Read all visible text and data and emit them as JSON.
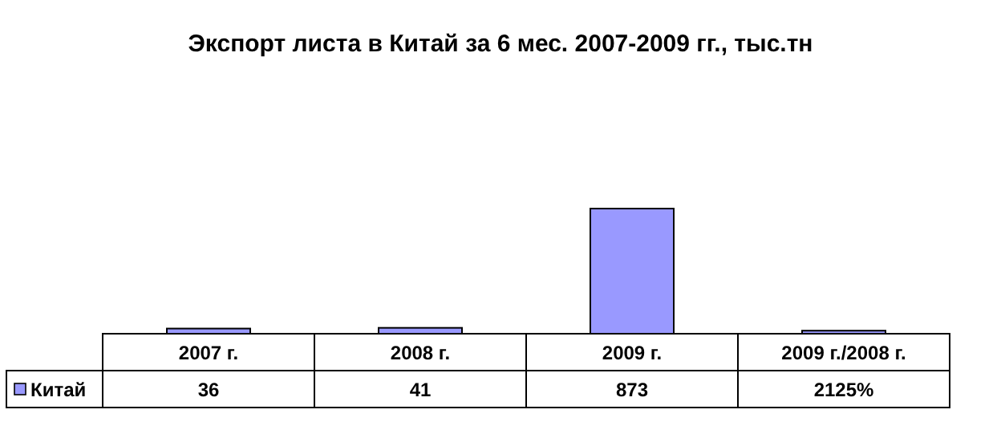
{
  "chart_data": {
    "type": "bar",
    "title": "Экспорт листа в Китай за 6 мес. 2007-2009 гг., тыс.тн",
    "categories": [
      "2007 г.",
      "2008 г.",
      "2009 г.",
      "2009 г./2008 г."
    ],
    "series": [
      {
        "name": "Китай",
        "color": "#9999ff",
        "values": [
          36,
          41,
          873,
          21.25
        ],
        "value_labels": [
          "36",
          "41",
          "873",
          "2125%"
        ]
      }
    ],
    "legend": "bottom left"
  }
}
